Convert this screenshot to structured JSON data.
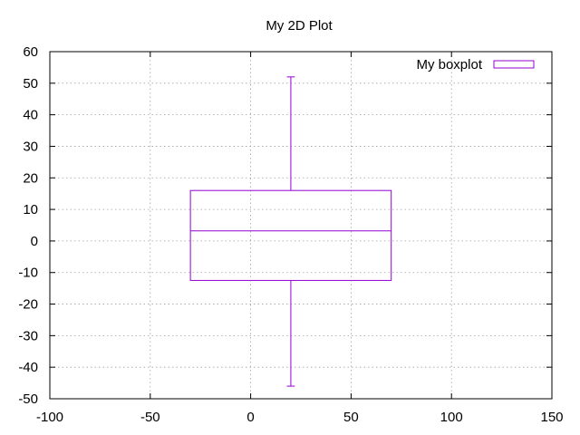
{
  "chart_data": {
    "type": "boxplot",
    "title": "My 2D Plot",
    "xlabel": "",
    "ylabel": "",
    "xlim": [
      -100,
      150
    ],
    "ylim": [
      -50,
      60
    ],
    "x_ticks": [
      -100,
      -50,
      0,
      50,
      100,
      150
    ],
    "y_ticks": [
      -50,
      -40,
      -30,
      -20,
      -10,
      0,
      10,
      20,
      30,
      40,
      50,
      60
    ],
    "grid": true,
    "legend": {
      "position": "top-right",
      "entries": [
        "My boxplot"
      ]
    },
    "series": [
      {
        "name": "My boxplot",
        "color": "#9400d3",
        "x_center": 20,
        "box_x_range": [
          -30,
          70
        ],
        "whisker_cap_x_range": [
          18,
          22
        ],
        "min": -46,
        "q1": -12.5,
        "median": 3.2,
        "q3": 16,
        "max": 52
      }
    ]
  }
}
